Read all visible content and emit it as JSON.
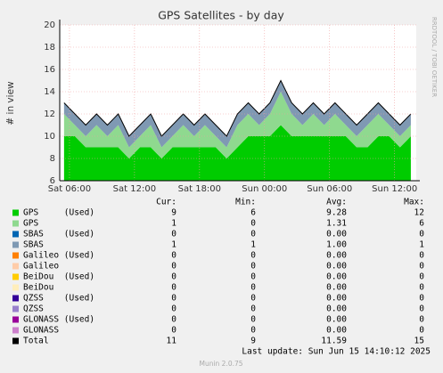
{
  "chart_data": {
    "type": "area",
    "title": "GPS Satellites - by day",
    "y_label": "# in view",
    "side_label": "RRDTOOL / TOBI OETIKER",
    "footer": "Last update: Sun Jun 15 14:10:12 2025",
    "version": "Munin 2.0.75",
    "stat_headers": [
      "Cur:",
      "Min:",
      "Avg:",
      "Max:"
    ],
    "grid": true,
    "xlim": [
      5.1,
      38.0
    ],
    "xticks": [
      {
        "value": 6,
        "label": "Sat 06:00"
      },
      {
        "value": 12,
        "label": "Sat 12:00"
      },
      {
        "value": 18,
        "label": "Sat 18:00"
      },
      {
        "value": 24,
        "label": "Sun 00:00"
      },
      {
        "value": 30,
        "label": "Sun 06:00"
      },
      {
        "value": 36,
        "label": "Sun 12:00"
      }
    ],
    "ylim": [
      6,
      20
    ],
    "yticks": [
      6,
      8,
      10,
      12,
      14,
      16,
      18,
      20
    ],
    "x": [
      5.5,
      6.5,
      7.5,
      8.5,
      9.5,
      10.5,
      11.5,
      12.5,
      13.5,
      14.5,
      15.5,
      16.5,
      17.5,
      18.5,
      19.5,
      20.5,
      21.5,
      22.5,
      23.5,
      24.5,
      25.5,
      26.5,
      27.5,
      28.5,
      29.5,
      30.5,
      31.5,
      32.5,
      33.5,
      34.5,
      35.5,
      36.5,
      37.5
    ],
    "series": [
      {
        "name": "GPS     (Used)",
        "color": "#00cc00",
        "style": "area",
        "values": [
          10,
          10,
          9,
          9,
          9,
          9,
          8,
          9,
          9,
          8,
          9,
          9,
          9,
          9,
          9,
          8,
          9,
          10,
          10,
          10,
          11,
          10,
          10,
          10,
          10,
          10,
          10,
          9,
          9,
          10,
          10,
          9,
          10
        ],
        "cur": 9,
        "min": 6,
        "avg": {
          "value": 9.28,
          "label": "9.28"
        },
        "max": 12
      },
      {
        "name": "GPS",
        "color": "#8fd98f",
        "style": "area",
        "values": [
          2,
          1,
          1,
          2,
          1,
          2,
          1,
          1,
          2,
          1,
          1,
          2,
          1,
          2,
          1,
          1,
          2,
          2,
          1,
          2,
          3,
          2,
          1,
          2,
          1,
          2,
          1,
          1,
          2,
          2,
          1,
          1,
          1
        ],
        "cur": 1,
        "min": 0,
        "avg": {
          "value": 1.31,
          "label": "1.31"
        },
        "max": 6
      },
      {
        "name": "SBAS    (Used)",
        "color": "#0066b3",
        "style": "area",
        "values": [
          0,
          0,
          0,
          0,
          0,
          0,
          0,
          0,
          0,
          0,
          0,
          0,
          0,
          0,
          0,
          0,
          0,
          0,
          0,
          0,
          0,
          0,
          0,
          0,
          0,
          0,
          0,
          0,
          0,
          0,
          0,
          0,
          0
        ],
        "cur": 0,
        "min": 0,
        "avg": {
          "value": 0,
          "label": "0.00"
        },
        "max": 0
      },
      {
        "name": "SBAS",
        "color": "#7f99b3",
        "style": "area",
        "values": [
          1,
          1,
          1,
          1,
          1,
          1,
          1,
          1,
          1,
          1,
          1,
          1,
          1,
          1,
          1,
          1,
          1,
          1,
          1,
          1,
          1,
          1,
          1,
          1,
          1,
          1,
          1,
          1,
          1,
          1,
          1,
          1,
          1
        ],
        "cur": 1,
        "min": 1,
        "avg": {
          "value": 1,
          "label": "1.00"
        },
        "max": 1
      },
      {
        "name": "Galileo (Used)",
        "color": "#ff8000",
        "cur": 0,
        "min": 0,
        "avg": {
          "value": 0,
          "label": "0.00"
        },
        "max": 0
      },
      {
        "name": "Galileo",
        "color": "#ffcca8",
        "cur": 0,
        "min": 0,
        "avg": {
          "value": 0,
          "label": "0.00"
        },
        "max": 0
      },
      {
        "name": "BeiDou  (Used)",
        "color": "#ffcc00",
        "cur": 0,
        "min": 0,
        "avg": {
          "value": 0,
          "label": "0.00"
        },
        "max": 0
      },
      {
        "name": "BeiDou",
        "color": "#ffeebb",
        "cur": 0,
        "min": 0,
        "avg": {
          "value": 0,
          "label": "0.00"
        },
        "max": 0
      },
      {
        "name": "QZSS    (Used)",
        "color": "#330099",
        "cur": 0,
        "min": 0,
        "avg": {
          "value": 0,
          "label": "0.00"
        },
        "max": 0
      },
      {
        "name": "QZSS",
        "color": "#9980cc",
        "cur": 0,
        "min": 0,
        "avg": {
          "value": 0,
          "label": "0.00"
        },
        "max": 0
      },
      {
        "name": "GLONASS (Used)",
        "color": "#990099",
        "cur": 0,
        "min": 0,
        "avg": {
          "value": 0,
          "label": "0.00"
        },
        "max": 0
      },
      {
        "name": "GLONASS",
        "color": "#cc80cc",
        "cur": 0,
        "min": 0,
        "avg": {
          "value": 0,
          "label": "0.00"
        },
        "max": 0
      },
      {
        "name": "Total",
        "color": "#000000",
        "style": "line",
        "values": [
          13,
          12,
          11,
          12,
          11,
          12,
          10,
          11,
          12,
          10,
          11,
          12,
          11,
          12,
          11,
          10,
          12,
          13,
          12,
          13,
          15,
          13,
          12,
          13,
          12,
          13,
          12,
          11,
          12,
          13,
          12,
          11,
          12
        ],
        "cur": 11,
        "min": 9,
        "avg": {
          "value": 11.59,
          "label": "11.59"
        },
        "max": 15
      }
    ]
  }
}
